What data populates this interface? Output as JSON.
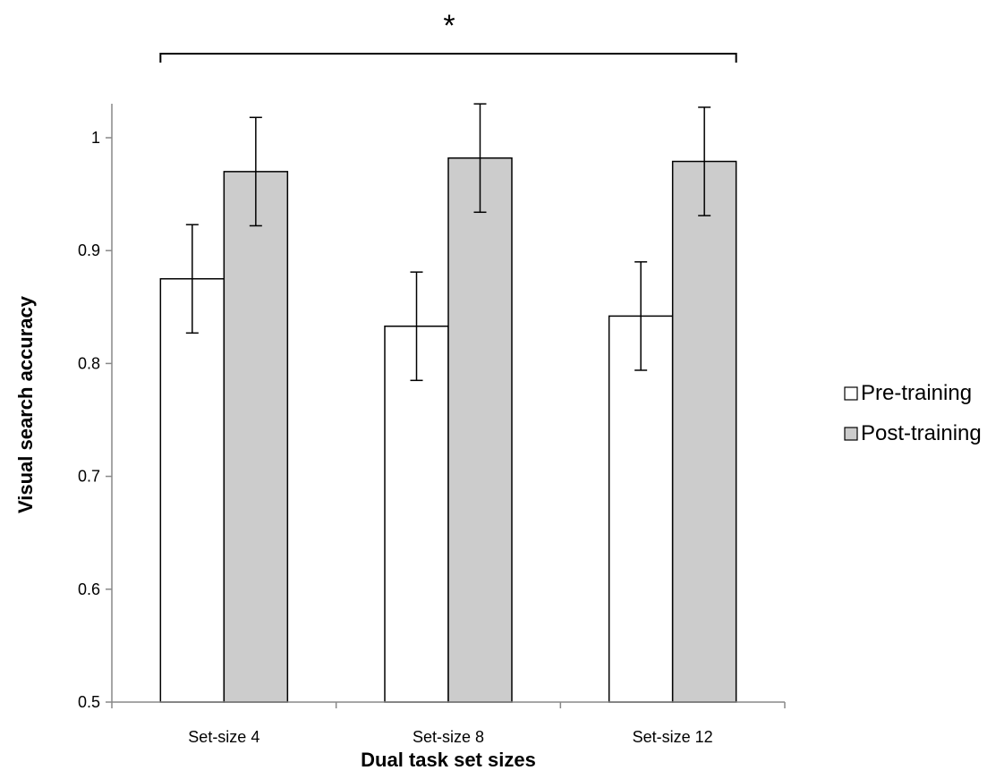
{
  "chart_data": {
    "type": "bar",
    "categories": [
      "Set-size 4",
      "Set-size 8",
      "Set-size 12"
    ],
    "series": [
      {
        "name": "Pre-training",
        "values": [
          0.875,
          0.833,
          0.842
        ],
        "errors": [
          0.048,
          0.048,
          0.048
        ],
        "color": "#ffffff"
      },
      {
        "name": "Post-training",
        "values": [
          0.97,
          0.982,
          0.979
        ],
        "errors": [
          0.048,
          0.048,
          0.048
        ],
        "color": "#cccccc"
      }
    ],
    "xlabel": "Dual task set sizes",
    "ylabel": "Visual search accuracy",
    "ylim": [
      0.5,
      1.0
    ],
    "yticks": [
      0.5,
      0.6,
      0.7,
      0.8,
      0.9,
      1.0
    ],
    "ytick_labels": [
      "0.5",
      "0.6",
      "0.7",
      "0.8",
      "0.9",
      "1"
    ],
    "legend_position": "right",
    "grid": false,
    "annotation": {
      "text": "*",
      "span_categories": [
        "Set-size 4",
        "Set-size 12"
      ]
    }
  }
}
